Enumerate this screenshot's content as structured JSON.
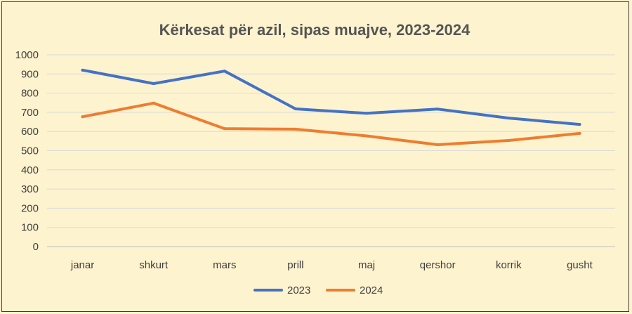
{
  "chart_data": {
    "type": "line",
    "title": "Kërkesat për azil, sipas muajve, 2023-2024",
    "xlabel": "",
    "ylabel": "",
    "categories": [
      "janar",
      "shkurt",
      "mars",
      "prill",
      "maj",
      "qershor",
      "korrik",
      "gusht"
    ],
    "ylim": [
      0,
      1000
    ],
    "yticks": [
      0,
      100,
      200,
      300,
      400,
      500,
      600,
      700,
      800,
      900,
      1000
    ],
    "grid": true,
    "legend_position": "bottom",
    "series": [
      {
        "name": "2023",
        "color": "#4472c4",
        "values": [
          920,
          850,
          915,
          718,
          695,
          717,
          670,
          637
        ]
      },
      {
        "name": "2024",
        "color": "#ed7d31",
        "values": [
          677,
          748,
          615,
          612,
          577,
          531,
          553,
          590
        ]
      }
    ]
  }
}
